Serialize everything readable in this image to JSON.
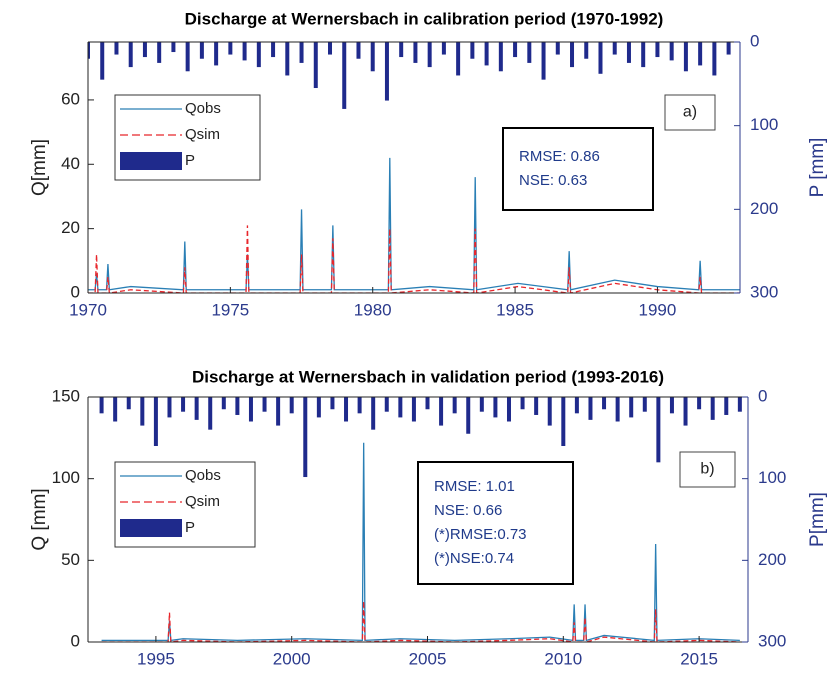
{
  "chart_data": [
    {
      "type": "line",
      "title": "Discharge at Wernersbach in calibration period (1970-1992)",
      "ylabel": "Q[mm]",
      "y2label": "P [mm]",
      "xlim": [
        1970,
        1992.9
      ],
      "xticks": [
        1970,
        1975,
        1980,
        1985,
        1990
      ],
      "ylim": [
        0,
        78
      ],
      "yticks": [
        0,
        20,
        40,
        60
      ],
      "y2lim": [
        0,
        300
      ],
      "y2ticks": [
        0,
        100,
        200,
        300
      ],
      "y2_reversed": true,
      "legend": "upper left",
      "panel_label": "a)",
      "stats": [
        "RMSE: 0.86",
        "NSE: 0.63"
      ],
      "x": [
        1970.0,
        1970.25,
        1970.3,
        1970.35,
        1970.65,
        1970.7,
        1970.75,
        1971.5,
        1973.35,
        1973.4,
        1973.45,
        1975.55,
        1975.6,
        1975.65,
        1977.45,
        1977.5,
        1977.55,
        1978.55,
        1978.6,
        1978.65,
        1980.55,
        1980.6,
        1980.65,
        1982.0,
        1983.55,
        1983.6,
        1983.65,
        1985.1,
        1986.85,
        1986.9,
        1986.95,
        1988.5,
        1990.0,
        1991.45,
        1991.5,
        1991.55,
        1992.9
      ],
      "series": [
        {
          "name": "Qobs",
          "color": "#2a7fb5",
          "style": "solid",
          "values": [
            1,
            1,
            6,
            1,
            1,
            9,
            1,
            2,
            1,
            16,
            1,
            1,
            12,
            1,
            1,
            26,
            1,
            1,
            21,
            1,
            1,
            42,
            1,
            2,
            1,
            36,
            1,
            3,
            1,
            13,
            1,
            4,
            2,
            1,
            10,
            1,
            1
          ]
        },
        {
          "name": "Qsim",
          "color": "#e8262b",
          "style": "dashed",
          "values": [
            0,
            0,
            12,
            0,
            0,
            5,
            0,
            1,
            0,
            8,
            0,
            0,
            21,
            0,
            0,
            12,
            0,
            0,
            17,
            0,
            0,
            20,
            0,
            1,
            0,
            20,
            0,
            2,
            0,
            8,
            0,
            3,
            1,
            0,
            5,
            0,
            0
          ]
        },
        {
          "name": "P",
          "color": "#1f2a8c",
          "type": "bar",
          "axis": "y2",
          "x": [
            1970.0,
            1970.5,
            1971.0,
            1971.5,
            1972.0,
            1972.5,
            1973.0,
            1973.5,
            1974.0,
            1974.5,
            1975.0,
            1975.5,
            1976.0,
            1976.5,
            1977.0,
            1977.5,
            1978.0,
            1978.5,
            1979.0,
            1979.5,
            1980.0,
            1980.5,
            1981.0,
            1981.5,
            1982.0,
            1982.5,
            1983.0,
            1983.5,
            1984.0,
            1984.5,
            1985.0,
            1985.5,
            1986.0,
            1986.5,
            1987.0,
            1987.5,
            1988.0,
            1988.5,
            1989.0,
            1989.5,
            1990.0,
            1990.5,
            1991.0,
            1991.5,
            1992.0,
            1992.5
          ],
          "values": [
            20,
            45,
            15,
            30,
            18,
            25,
            12,
            35,
            20,
            28,
            15,
            22,
            30,
            18,
            40,
            25,
            55,
            15,
            80,
            20,
            35,
            70,
            18,
            25,
            30,
            15,
            40,
            20,
            28,
            35,
            18,
            25,
            45,
            15,
            30,
            20,
            38,
            15,
            25,
            30,
            18,
            22,
            35,
            28,
            40,
            15
          ]
        }
      ]
    },
    {
      "type": "line",
      "title": "Discharge at Wernersbach in validation period (1993-2016)",
      "ylabel": "Q [mm]",
      "y2label": "P[mm]",
      "xlim": [
        1992.5,
        2016.8
      ],
      "xticks": [
        1995,
        2000,
        2005,
        2010,
        2015
      ],
      "ylim": [
        0,
        150
      ],
      "yticks": [
        0,
        50,
        100,
        150
      ],
      "y2lim": [
        0,
        300
      ],
      "y2ticks": [
        0,
        100,
        200,
        300
      ],
      "y2_reversed": true,
      "legend": "upper left",
      "panel_label": "b)",
      "stats": [
        "RMSE: 1.01",
        "NSE: 0.66",
        "(*)RMSE:0.73",
        "(*)NSE:0.74"
      ],
      "x": [
        1993.0,
        1995.45,
        1995.5,
        1995.55,
        1996.0,
        1998.0,
        2000.5,
        2002.6,
        2002.65,
        2002.7,
        2004.0,
        2006.0,
        2008.0,
        2009.5,
        2010.35,
        2010.4,
        2010.45,
        2010.75,
        2010.8,
        2010.85,
        2011.5,
        2013.35,
        2013.4,
        2013.45,
        2015.0,
        2016.5
      ],
      "series": [
        {
          "name": "Qobs",
          "color": "#2a7fb5",
          "style": "solid",
          "values": [
            1,
            1,
            13,
            1,
            2,
            1,
            2,
            1,
            122,
            1,
            2,
            1,
            2,
            3,
            1,
            23,
            1,
            1,
            23,
            1,
            4,
            1,
            60,
            1,
            2,
            1
          ]
        },
        {
          "name": "Qsim",
          "color": "#e8262b",
          "style": "dashed",
          "values": [
            0,
            0,
            18,
            0,
            1,
            0,
            1,
            0,
            25,
            0,
            1,
            0,
            1,
            2,
            0,
            12,
            0,
            0,
            15,
            0,
            3,
            0,
            20,
            0,
            1,
            0
          ]
        },
        {
          "name": "P",
          "color": "#1f2a8c",
          "type": "bar",
          "axis": "y2",
          "x": [
            1993.0,
            1993.5,
            1994.0,
            1994.5,
            1995.0,
            1995.5,
            1996.0,
            1996.5,
            1997.0,
            1997.5,
            1998.0,
            1998.5,
            1999.0,
            1999.5,
            2000.0,
            2000.5,
            2001.0,
            2001.5,
            2002.0,
            2002.5,
            2003.0,
            2003.5,
            2004.0,
            2004.5,
            2005.0,
            2005.5,
            2006.0,
            2006.5,
            2007.0,
            2007.5,
            2008.0,
            2008.5,
            2009.0,
            2009.5,
            2010.0,
            2010.5,
            2011.0,
            2011.5,
            2012.0,
            2012.5,
            2013.0,
            2013.5,
            2014.0,
            2014.5,
            2015.0,
            2015.5,
            2016.0,
            2016.5
          ],
          "values": [
            20,
            30,
            15,
            35,
            60,
            25,
            18,
            28,
            40,
            15,
            22,
            30,
            18,
            35,
            20,
            98,
            25,
            15,
            30,
            20,
            40,
            18,
            25,
            30,
            15,
            35,
            20,
            45,
            18,
            25,
            30,
            15,
            22,
            35,
            60,
            20,
            28,
            15,
            30,
            25,
            18,
            80,
            20,
            35,
            15,
            28,
            22,
            18
          ]
        }
      ]
    }
  ]
}
